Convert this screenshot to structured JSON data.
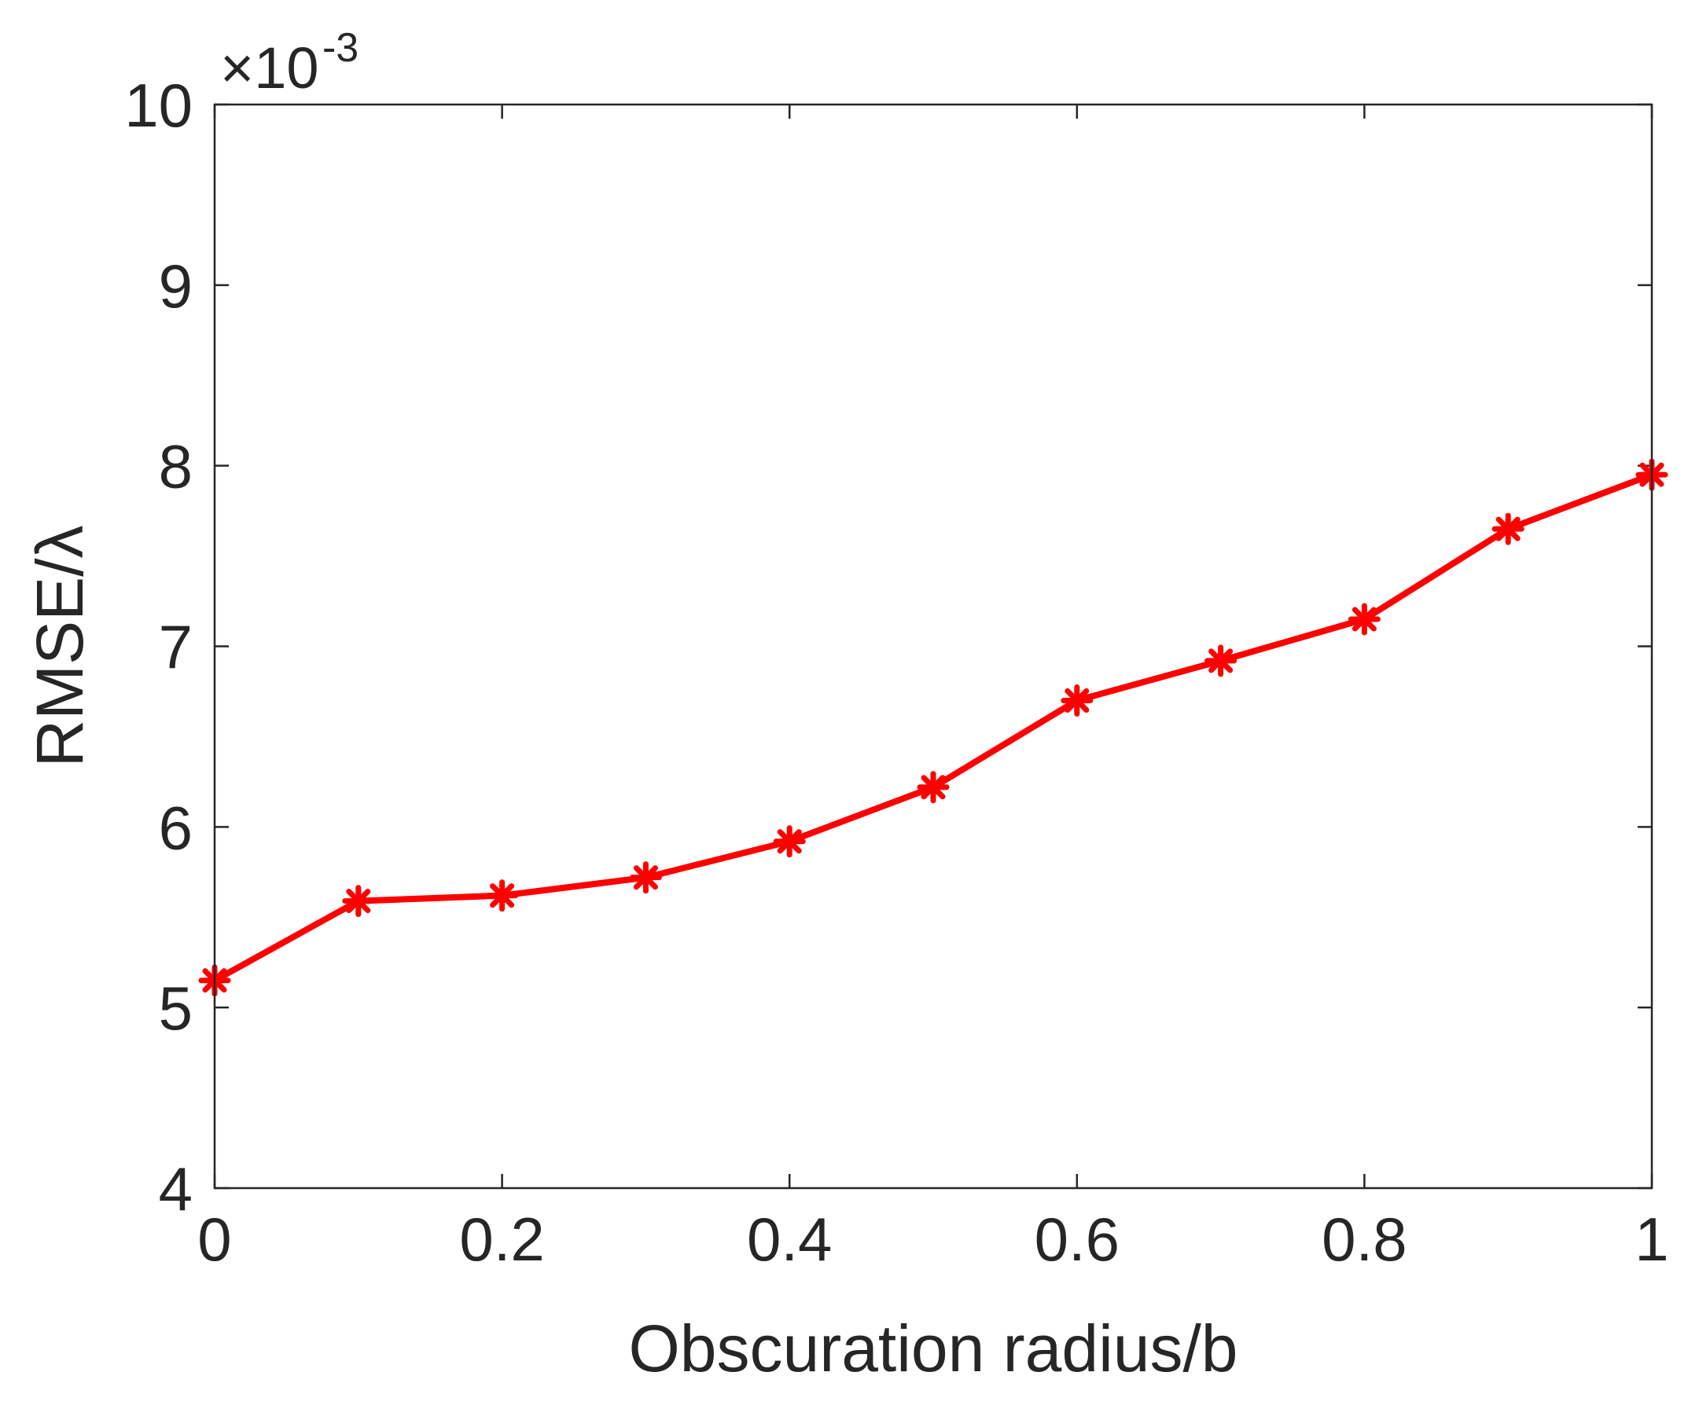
{
  "chart_data": {
    "type": "line",
    "title": "",
    "xlabel": "Obscuration radius/b",
    "ylabel": "RMSE/λ",
    "y_multiplier": {
      "prefix": "×10",
      "exponent": "-3"
    },
    "xlim": [
      0,
      1
    ],
    "ylim": [
      4,
      10
    ],
    "x_ticks": [
      "0",
      "0.2",
      "0.4",
      "0.6",
      "0.8",
      "1"
    ],
    "y_ticks": [
      "4",
      "5",
      "6",
      "7",
      "8",
      "9",
      "10"
    ],
    "grid": false,
    "legend": false,
    "color": "#ff0000",
    "marker": "asterisk",
    "series": [
      {
        "x": [
          0,
          0.1,
          0.2,
          0.3,
          0.4,
          0.5,
          0.6,
          0.7,
          0.8,
          0.9,
          1.0
        ],
        "values": [
          5.15,
          5.59,
          5.62,
          5.72,
          5.92,
          6.22,
          6.7,
          6.92,
          7.15,
          7.65,
          7.95
        ]
      }
    ]
  }
}
